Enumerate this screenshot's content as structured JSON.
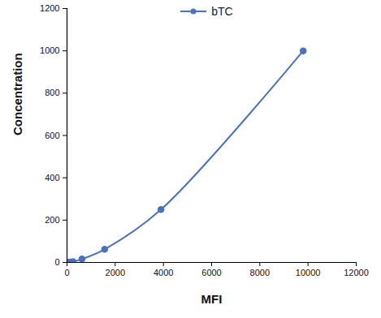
{
  "chart_data": {
    "type": "line",
    "x_label": "MFI",
    "y_label": "Concentration",
    "x": [
      60,
      130,
      250,
      620,
      1560,
      3900,
      9800
    ],
    "series": [
      {
        "name": "bTC",
        "color": "#4a72c0",
        "values": [
          1,
          2,
          4,
          16,
          62,
          250,
          1000
        ],
        "marker": "circle",
        "line_style": "solid"
      }
    ],
    "xlim": [
      0,
      12000
    ],
    "ylim": [
      0,
      1200
    ],
    "xticks": [
      0,
      2000,
      4000,
      6000,
      8000,
      10000,
      12000
    ],
    "yticks": [
      0,
      200,
      400,
      600,
      800,
      1000,
      1200
    ],
    "grid": false,
    "legend": "top"
  }
}
